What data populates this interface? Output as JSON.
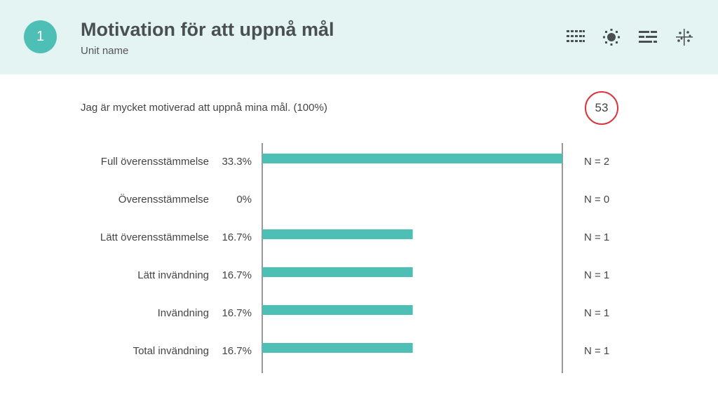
{
  "header": {
    "number": "1",
    "title": "Motivation för att uppnå mål",
    "subtitle": "Unit name",
    "tools": [
      {
        "icon": "grid-dots-icon"
      },
      {
        "icon": "sun-icon"
      },
      {
        "icon": "bars-lines-icon"
      },
      {
        "icon": "scatter-crosshair-icon"
      }
    ]
  },
  "question": {
    "text": "Jag är mycket motiverad att uppnå mina mål. (100%)",
    "count": "53"
  },
  "colors": {
    "header_bg": "#e3f4f2",
    "accent": "#4dbfb4",
    "bar": "#4dbfb4",
    "count_circle": "#d9363e"
  },
  "chart_data": {
    "type": "bar",
    "orientation": "horizontal",
    "categories": [
      "Full överensstämmelse",
      "Överensstämmelse",
      "Lätt överensstämmelse",
      "Lätt invändning",
      "Invändning",
      "Total invändning"
    ],
    "values": [
      33.3,
      0,
      16.7,
      16.7,
      16.7,
      16.7
    ],
    "value_labels": [
      "33.3%",
      "0%",
      "16.7%",
      "16.7%",
      "16.7%",
      "16.7%"
    ],
    "n_labels": [
      "N = 2",
      "N = 0",
      "N = 1",
      "N = 1",
      "N = 1",
      "N = 1"
    ],
    "xlim": [
      0,
      33.3
    ],
    "grid": false
  }
}
